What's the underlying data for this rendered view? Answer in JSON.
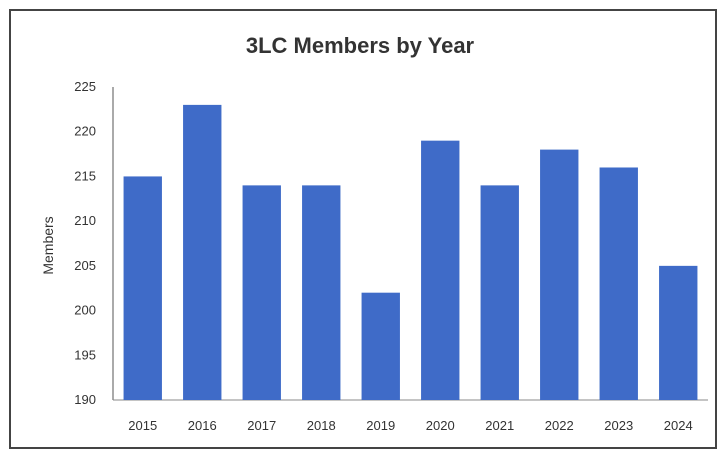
{
  "chart_data": {
    "type": "bar",
    "title": "3LC Members by Year",
    "xlabel": "",
    "ylabel": "Members",
    "categories": [
      "2015",
      "2016",
      "2017",
      "2018",
      "2019",
      "2020",
      "2021",
      "2022",
      "2023",
      "2024"
    ],
    "values": [
      215,
      223,
      214,
      214,
      202,
      219,
      214,
      218,
      216,
      205
    ],
    "ylim": [
      190,
      225
    ],
    "yticks": [
      190,
      195,
      200,
      205,
      210,
      215,
      220,
      225
    ],
    "grid": false,
    "legend": "none",
    "bar_color": "#3f6bc8"
  }
}
